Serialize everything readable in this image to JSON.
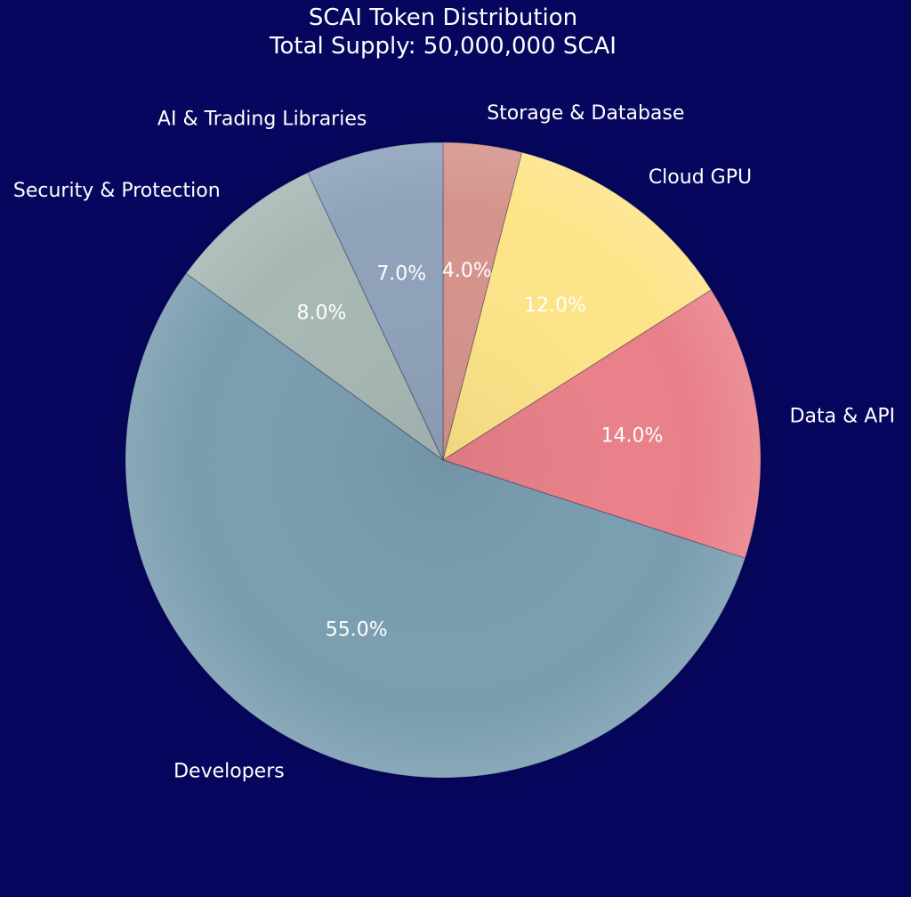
{
  "title": {
    "line1": "SCAI Token Distribution",
    "line2": "Total Supply: 50,000,000 SCAI"
  },
  "chart_data": {
    "type": "pie",
    "title": "SCAI Token Distribution\nTotal Supply: 50,000,000 SCAI",
    "start_angle_deg": 90,
    "direction": "clockwise",
    "slices": [
      {
        "label": "Storage & Database",
        "value": 4.0,
        "pct_label": "4.0%",
        "color": "#d5948b"
      },
      {
        "label": "Cloud GPU",
        "value": 12.0,
        "pct_label": "12.0%",
        "color": "#fde488"
      },
      {
        "label": "Data & API",
        "value": 14.0,
        "pct_label": "14.0%",
        "color": "#e98089"
      },
      {
        "label": "Developers",
        "value": 55.0,
        "pct_label": "55.0%",
        "color": "#7a9db0"
      },
      {
        "label": "Security & Protection",
        "value": 8.0,
        "pct_label": "8.0%",
        "color": "#a7b8b4"
      },
      {
        "label": "AI & Trading Libraries",
        "value": 7.0,
        "pct_label": "7.0%",
        "color": "#8ea2ba"
      }
    ]
  },
  "colors": {
    "background": "#06065e",
    "text": "#ffffff"
  }
}
